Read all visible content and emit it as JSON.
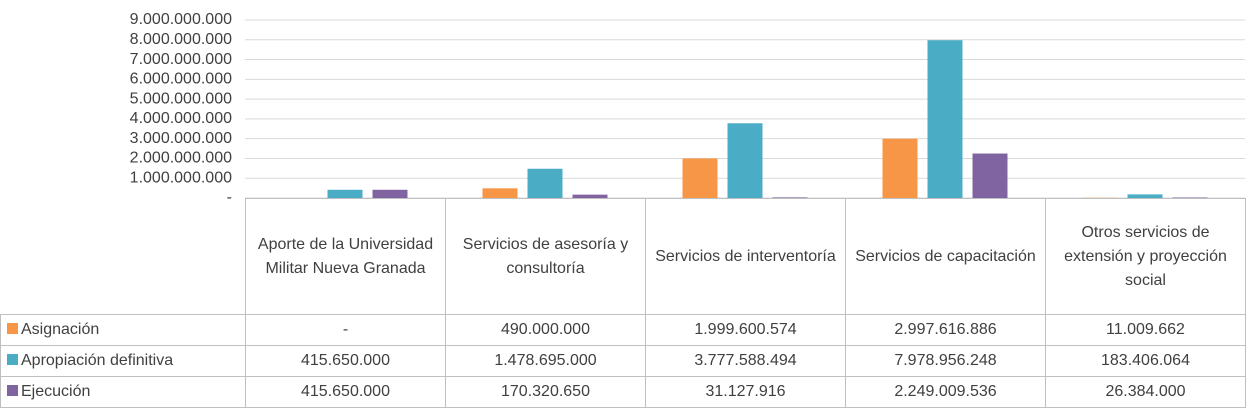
{
  "chart_data": {
    "type": "bar",
    "categories": [
      "Aporte de la Universidad Militar Nueva Granada",
      "Servicios de asesoría y consultoría",
      "Servicios de interventoría",
      "Servicios de capacitación",
      "Otros servicios de extensión y proyección social"
    ],
    "series": [
      {
        "name": "Asignación",
        "color": "#f79646",
        "values": [
          null,
          490000000,
          1999600574,
          2997616886,
          11009662
        ],
        "value_labels": [
          "-",
          "490.000.000",
          "1.999.600.574",
          "2.997.616.886",
          "11.009.662"
        ]
      },
      {
        "name": "Apropiación definitiva",
        "color": "#4bacc6",
        "values": [
          415650000,
          1478695000,
          3777588494,
          7978956248,
          183406064
        ],
        "value_labels": [
          "415.650.000",
          "1.478.695.000",
          "3.777.588.494",
          "7.978.956.248",
          "183.406.064"
        ]
      },
      {
        "name": "Ejecución",
        "color": "#8064a2",
        "values": [
          415650000,
          170320650,
          31127916,
          2249009536,
          26384000
        ],
        "value_labels": [
          "415.650.000",
          "170.320.650",
          "31.127.916",
          "2.249.009.536",
          "26.384.000"
        ]
      }
    ],
    "ylim": [
      0,
      9000000000
    ],
    "yticks": [
      {
        "value": 0,
        "label": "-"
      },
      {
        "value": 1000000000,
        "label": "1.000.000.000"
      },
      {
        "value": 2000000000,
        "label": "2.000.000.000"
      },
      {
        "value": 3000000000,
        "label": "3.000.000.000"
      },
      {
        "value": 4000000000,
        "label": "4.000.000.000"
      },
      {
        "value": 5000000000,
        "label": "5.000.000.000"
      },
      {
        "value": 6000000000,
        "label": "6.000.000.000"
      },
      {
        "value": 7000000000,
        "label": "7.000.000.000"
      },
      {
        "value": 8000000000,
        "label": "8.000.000.000"
      },
      {
        "value": 9000000000,
        "label": "9.000.000.000"
      }
    ],
    "grid": true
  }
}
